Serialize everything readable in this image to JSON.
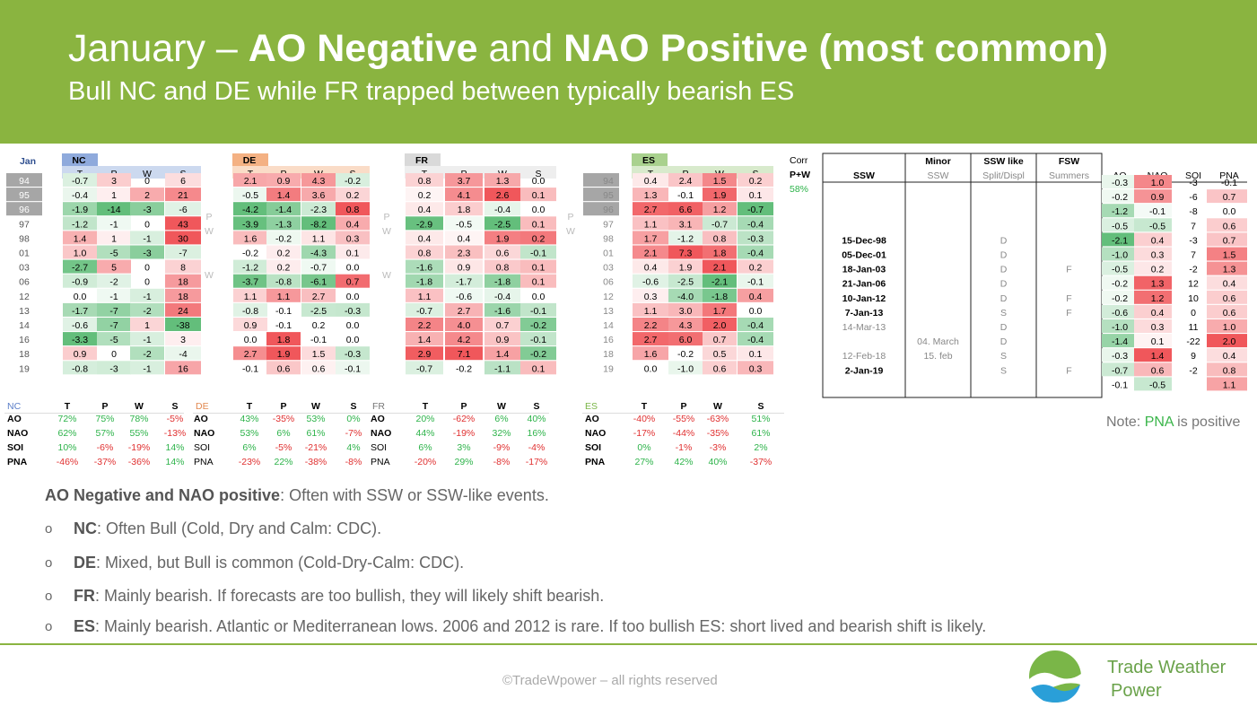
{
  "header": {
    "title_pre": "January – ",
    "title_b1": "AO Negative",
    "title_mid": " and ",
    "title_b2": "NAO Positive (most common)",
    "subtitle": "Bull NC and DE while FR trapped between typically bearish ES"
  },
  "colors": {
    "header_green": "#8ab440",
    "red_strong": "#f0575b",
    "red_weak": "#fbe3e3",
    "green_strong": "#63be7b",
    "green_weak": "#e6f4e9"
  },
  "years": [
    "94",
    "95",
    "96",
    "97",
    "98",
    "01",
    "03",
    "06",
    "12",
    "13",
    "14",
    "16",
    "18",
    "19"
  ],
  "corner_label": "Jan",
  "markers": {
    "p": "P",
    "w": "W"
  },
  "col_heads": [
    "T",
    "P",
    "W",
    "S"
  ],
  "regions": [
    {
      "name": "NC",
      "color": "#8faadc",
      "rows": [
        [
          "-0.7",
          "3",
          "0",
          "6"
        ],
        [
          "-0.4",
          "1",
          "2",
          "21"
        ],
        [
          "-1.9",
          "-14",
          "-3",
          "-6"
        ],
        [
          "-1.2",
          "-1",
          "0",
          "43"
        ],
        [
          "1.4",
          "1",
          "-1",
          "30"
        ],
        [
          "1.0",
          "-5",
          "-3",
          "-7"
        ],
        [
          "-2.7",
          "5",
          "0",
          "8"
        ],
        [
          "-0.9",
          "-2",
          "0",
          "18"
        ],
        [
          "0.0",
          "-1",
          "-1",
          "18"
        ],
        [
          "-1.7",
          "-7",
          "-2",
          "24"
        ],
        [
          "-0.6",
          "-7",
          "1",
          "-38"
        ],
        [
          "-3.3",
          "-5",
          "-1",
          "3"
        ],
        [
          "0.9",
          "0",
          "-2",
          "-4"
        ],
        [
          "-0.8",
          "-3",
          "-1",
          "16"
        ]
      ],
      "corr_label": "NC",
      "corr": [
        [
          "72%",
          "75%",
          "78%",
          "-5%"
        ],
        [
          "62%",
          "57%",
          "55%",
          "-13%"
        ],
        [
          "10%",
          "-6%",
          "-19%",
          "14%"
        ],
        [
          "-46%",
          "-37%",
          "-36%",
          "14%"
        ]
      ]
    },
    {
      "name": "DE",
      "color": "#f4b183",
      "rows": [
        [
          "2.1",
          "0.9",
          "4.3",
          "-0.2"
        ],
        [
          "-0.5",
          "1.4",
          "3.6",
          "0.2"
        ],
        [
          "-4.2",
          "-1.4",
          "-2.3",
          "0.8"
        ],
        [
          "-3.9",
          "-1.3",
          "-8.2",
          "0.4"
        ],
        [
          "1.6",
          "-0.2",
          "1.1",
          "0.3"
        ],
        [
          "-0.2",
          "0.2",
          "-4.3",
          "0.1"
        ],
        [
          "-1.2",
          "0.2",
          "-0.7",
          "0.0"
        ],
        [
          "-3.7",
          "-0.8",
          "-6.1",
          "0.7"
        ],
        [
          "1.1",
          "1.1",
          "2.7",
          "0.0"
        ],
        [
          "-0.8",
          "-0.1",
          "-2.5",
          "-0.3"
        ],
        [
          "0.9",
          "-0.1",
          "0.2",
          "0.0"
        ],
        [
          "0.0",
          "1.8",
          "-0.1",
          "0.0"
        ],
        [
          "2.7",
          "1.9",
          "1.5",
          "-0.3"
        ],
        [
          "-0.1",
          "0.6",
          "0.6",
          "-0.1"
        ]
      ],
      "corr_label": "DE",
      "corr": [
        [
          "43%",
          "-35%",
          "53%",
          "0%"
        ],
        [
          "53%",
          "6%",
          "61%",
          "-7%"
        ],
        [
          "6%",
          "-5%",
          "-21%",
          "4%"
        ],
        [
          "-23%",
          "22%",
          "-38%",
          "-8%"
        ]
      ]
    },
    {
      "name": "FR",
      "color": "#d9d9d9",
      "rows": [
        [
          "0.8",
          "3.7",
          "1.3",
          "0.0"
        ],
        [
          "0.2",
          "4.1",
          "2.6",
          "0.1"
        ],
        [
          "0.4",
          "1.8",
          "-0.4",
          "0.0"
        ],
        [
          "-2.9",
          "-0.5",
          "-2.5",
          "0.1"
        ],
        [
          "0.4",
          "0.4",
          "1.9",
          "0.2"
        ],
        [
          "0.8",
          "2.3",
          "0.6",
          "-0.1"
        ],
        [
          "-1.6",
          "0.9",
          "0.8",
          "0.1"
        ],
        [
          "-1.8",
          "-1.7",
          "-1.8",
          "0.1"
        ],
        [
          "1.1",
          "-0.6",
          "-0.4",
          "0.0"
        ],
        [
          "-0.7",
          "2.7",
          "-1.6",
          "-0.1"
        ],
        [
          "2.2",
          "4.0",
          "0.7",
          "-0.2"
        ],
        [
          "1.4",
          "4.2",
          "0.9",
          "-0.1"
        ],
        [
          "2.9",
          "7.1",
          "1.4",
          "-0.2"
        ],
        [
          "-0.7",
          "-0.2",
          "-1.1",
          "0.1"
        ]
      ],
      "corr_label": "FR",
      "corr": [
        [
          "20%",
          "-62%",
          "6%",
          "40%"
        ],
        [
          "44%",
          "-19%",
          "32%",
          "16%"
        ],
        [
          "6%",
          "3%",
          "-9%",
          "-4%"
        ],
        [
          "-20%",
          "29%",
          "-8%",
          "-17%"
        ]
      ]
    },
    {
      "name": "ES",
      "color": "#a9d18e",
      "rows": [
        [
          "0.4",
          "2.4",
          "1.5",
          "0.2"
        ],
        [
          "1.3",
          "-0.1",
          "1.9",
          "0.1"
        ],
        [
          "2.7",
          "6.6",
          "1.2",
          "-0.7"
        ],
        [
          "1.1",
          "3.1",
          "-0.7",
          "-0.4"
        ],
        [
          "1.7",
          "-1.2",
          "0.8",
          "-0.3"
        ],
        [
          "2.1",
          "7.3",
          "1.8",
          "-0.4"
        ],
        [
          "0.4",
          "1.9",
          "2.1",
          "0.2"
        ],
        [
          "-0.6",
          "-2.5",
          "-2.1",
          "-0.1"
        ],
        [
          "0.3",
          "-4.0",
          "-1.8",
          "0.4"
        ],
        [
          "1.1",
          "3.0",
          "1.7",
          "0.0"
        ],
        [
          "2.2",
          "4.3",
          "2.0",
          "-0.4"
        ],
        [
          "2.7",
          "6.0",
          "0.7",
          "-0.4"
        ],
        [
          "1.6",
          "-0.2",
          "0.5",
          "0.1"
        ],
        [
          "0.0",
          "-1.0",
          "0.6",
          "0.3"
        ]
      ],
      "corr_label": "ES",
      "corr": [
        [
          "-40%",
          "-55%",
          "-63%",
          "51%"
        ],
        [
          "-17%",
          "-44%",
          "-35%",
          "61%"
        ],
        [
          "0%",
          "-1%",
          "-3%",
          "2%"
        ],
        [
          "27%",
          "42%",
          "40%",
          "-37%"
        ]
      ]
    }
  ],
  "corr_rows": [
    "AO",
    "NAO",
    "SOI",
    "PNA"
  ],
  "corr_heads": [
    "T",
    "P",
    "W",
    "S"
  ],
  "pw": {
    "l1": "Corr",
    "l2": "P+W",
    "val": "58%"
  },
  "ssw": {
    "heads": [
      [
        "",
        "SSW"
      ],
      [
        "Minor",
        "SSW"
      ],
      [
        "SSW like",
        "Split/Displ"
      ],
      [
        "FSW",
        "Summers"
      ]
    ],
    "idx_heads": [
      "AO",
      "NAO",
      "SOI",
      "PNA"
    ],
    "dates": [
      "",
      "",
      "",
      "",
      "15-Dec-98",
      "05-Dec-01",
      "18-Jan-03",
      "21-Jan-06",
      "10-Jan-12",
      "7-Jan-13",
      "14-Mar-13",
      "",
      "12-Feb-18",
      "2-Jan-19"
    ],
    "minor": [
      "",
      "",
      "",
      "",
      "",
      "",
      "",
      "",
      "",
      "",
      "",
      "04. March",
      "15. feb",
      ""
    ],
    "split": [
      "",
      "",
      "",
      "",
      "D",
      "D",
      "D",
      "D",
      "D",
      "S",
      "D",
      "D",
      "S",
      "S"
    ],
    "fsw": [
      "",
      "",
      "",
      "",
      "",
      "",
      "F",
      "",
      "F",
      "F",
      "",
      "",
      "",
      "F"
    ],
    "idx": [
      [
        "-0.3",
        "1.0",
        "-3",
        "-0.1"
      ],
      [
        "-0.2",
        "0.9",
        "-6",
        "0.7"
      ],
      [
        "-1.2",
        "-0.1",
        "-8",
        "0.0"
      ],
      [
        "-0.5",
        "-0.5",
        "7",
        "0.6"
      ],
      [
        "-2.1",
        "0.4",
        "-3",
        "0.7"
      ],
      [
        "-1.0",
        "0.3",
        "7",
        "1.5"
      ],
      [
        "-0.5",
        "0.2",
        "-2",
        "1.3"
      ],
      [
        "-0.2",
        "1.3",
        "12",
        "0.4"
      ],
      [
        "-0.2",
        "1.2",
        "10",
        "0.6"
      ],
      [
        "-0.6",
        "0.4",
        "0",
        "0.6"
      ],
      [
        "-1.0",
        "0.3",
        "11",
        "1.0"
      ],
      [
        "-1.4",
        "0.1",
        "-22",
        "2.0"
      ],
      [
        "-0.3",
        "1.4",
        "9",
        "0.4"
      ],
      [
        "-0.7",
        "0.6",
        "-2",
        "0.8"
      ]
    ],
    "avg": [
      "-0.1",
      "-0.5",
      "",
      "1.1"
    ]
  },
  "note": {
    "pre": "Note: ",
    "pna": "PNA",
    "post": " is positive"
  },
  "bullets": {
    "intro_b": "AO Negative and NAO positive",
    "intro": ": Often with SSW or SSW-like events.",
    "marker": "o",
    "items": [
      [
        "NC",
        ": Often Bull (Cold, Dry and Calm: CDC)."
      ],
      [
        "DE",
        ": Mixed, but Bull is common (Cold-Dry-Calm: CDC)."
      ],
      [
        "FR",
        ": Mainly bearish. If forecasts are too bullish, they will likely shift bearish."
      ],
      [
        "ES",
        ": Mainly bearish. Atlantic or Mediterranean lows. 2006 and 2012 is rare. If too bullish ES: short lived and bearish shift is likely."
      ]
    ]
  },
  "footer": {
    "copyright": "©TradeWpower – all rights reserved",
    "brand1": "Trade Weather",
    "brand2": "Power"
  }
}
